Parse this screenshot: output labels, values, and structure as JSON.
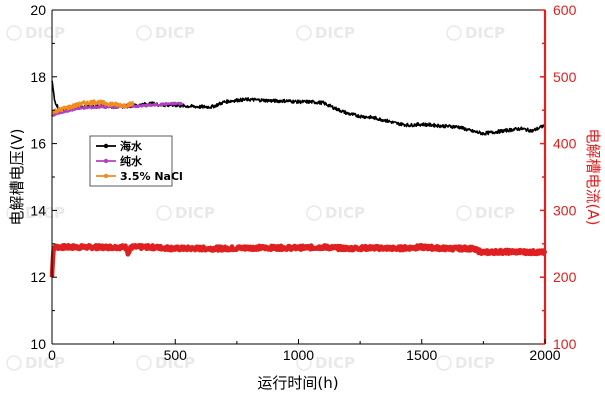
{
  "chart_data": {
    "type": "line",
    "xlabel": "运行时间(h)",
    "ylabel_left": "电解槽电压(V)",
    "ylabel_right": "电解槽电流(A)",
    "xlim": [
      0,
      2000
    ],
    "ylim_left": [
      10,
      20
    ],
    "ylim_right": [
      100,
      600
    ],
    "x_ticks": [
      0,
      500,
      1000,
      1500,
      2000
    ],
    "y_left_ticks": [
      10,
      12,
      14,
      16,
      18,
      20
    ],
    "y_right_ticks": [
      100,
      200,
      300,
      400,
      500,
      600
    ],
    "grid": false,
    "legend": {
      "placement": "middle-left",
      "entries": [
        "海水",
        "纯水",
        "3.5% NaCl"
      ]
    },
    "colors": {
      "seawater": "#000000",
      "pure_water": "#b040c0",
      "nacl": "#f08c1e",
      "current": "#e02020",
      "right_axis": "#e02020"
    },
    "watermark": "DICP",
    "series": [
      {
        "name": "海水",
        "axis": "left",
        "x": [
          0,
          10,
          30,
          60,
          100,
          150,
          200,
          250,
          300,
          350,
          400,
          450,
          500,
          550,
          600,
          650,
          700,
          750,
          800,
          850,
          900,
          950,
          1000,
          1050,
          1100,
          1150,
          1200,
          1250,
          1300,
          1350,
          1400,
          1450,
          1500,
          1550,
          1600,
          1650,
          1700,
          1750,
          1800,
          1850,
          1900,
          1950,
          2000
        ],
        "values": [
          17.9,
          17.3,
          17.0,
          17.05,
          17.1,
          17.1,
          17.12,
          17.1,
          17.12,
          17.15,
          17.2,
          17.15,
          17.15,
          17.12,
          17.1,
          17.1,
          17.25,
          17.3,
          17.32,
          17.3,
          17.28,
          17.28,
          17.25,
          17.25,
          17.22,
          17.05,
          16.9,
          16.82,
          16.78,
          16.7,
          16.6,
          16.55,
          16.58,
          16.55,
          16.52,
          16.5,
          16.38,
          16.3,
          16.35,
          16.4,
          16.45,
          16.38,
          16.55
        ]
      },
      {
        "name": "纯水",
        "axis": "left",
        "x": [
          0,
          25,
          50,
          75,
          100,
          150,
          200,
          250,
          300,
          350,
          400,
          450,
          500,
          530
        ],
        "values": [
          16.85,
          16.9,
          16.95,
          17.0,
          17.05,
          17.08,
          17.1,
          17.1,
          17.12,
          17.12,
          17.15,
          17.18,
          17.2,
          17.2
        ]
      },
      {
        "name": "3.5% NaCl",
        "axis": "left",
        "x": [
          0,
          25,
          50,
          75,
          100,
          125,
          150,
          175,
          200,
          225,
          250,
          275,
          300,
          330
        ],
        "values": [
          16.95,
          17.0,
          17.05,
          17.1,
          17.15,
          17.2,
          17.22,
          17.25,
          17.22,
          17.2,
          17.18,
          17.15,
          17.15,
          17.2
        ]
      },
      {
        "name": "",
        "axis": "right",
        "x": [
          0,
          5,
          10,
          100,
          200,
          300,
          310,
          320,
          400,
          500,
          600,
          700,
          800,
          900,
          1000,
          1100,
          1200,
          1300,
          1400,
          1500,
          1600,
          1700,
          1750,
          1800,
          1900,
          2000
        ],
        "values": [
          200,
          240,
          245,
          245,
          245,
          245,
          235,
          245,
          245,
          243,
          243,
          243,
          244,
          244,
          244,
          245,
          243,
          244,
          243,
          245,
          243,
          243,
          237,
          238,
          238,
          237
        ]
      }
    ]
  }
}
